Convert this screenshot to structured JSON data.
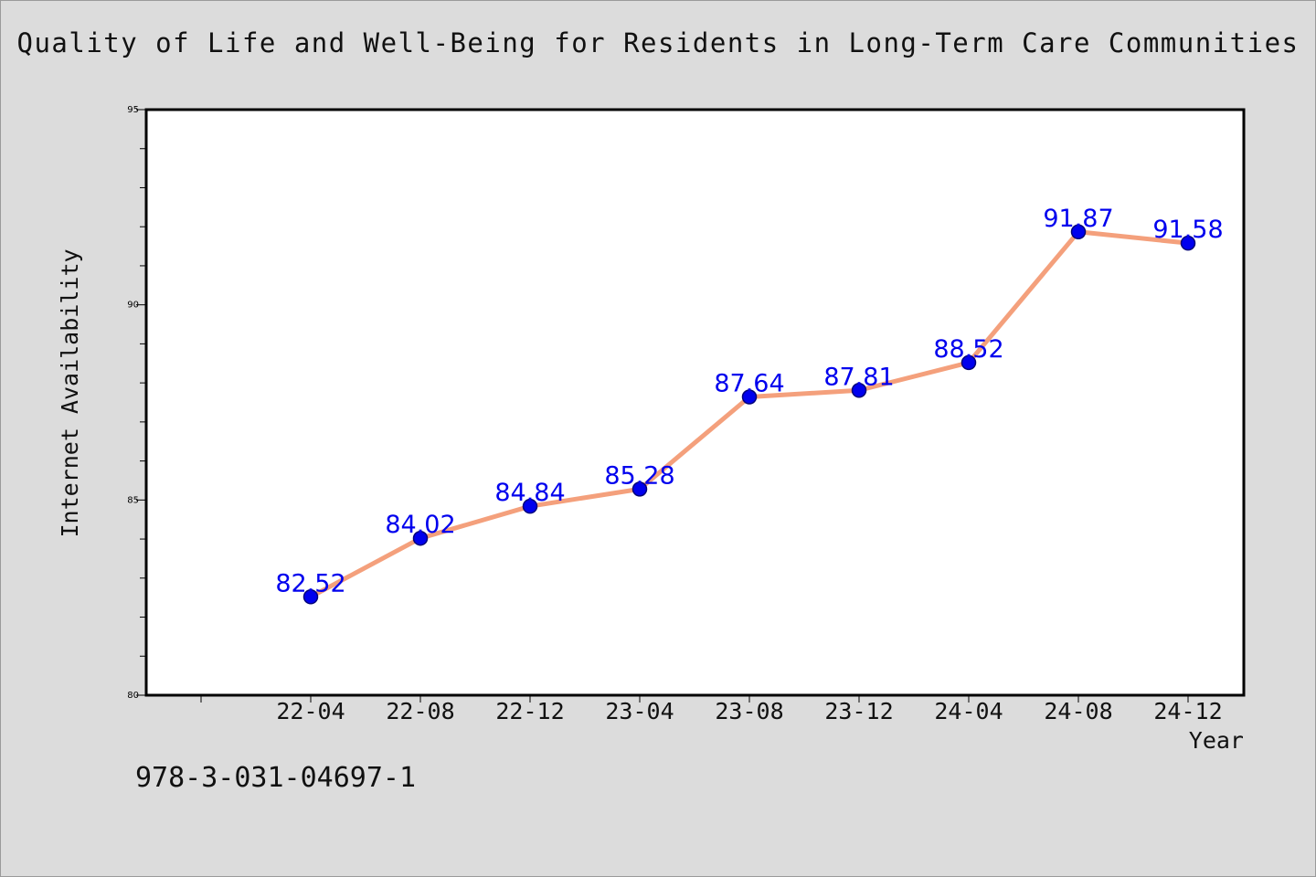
{
  "footer": {
    "code": "978-3-031-04697-1"
  },
  "chart_data": {
    "type": "line",
    "title": "Quality of Life and Well-Being for Residents in Long-Term Care Communities",
    "xlabel": "Year",
    "ylabel": "Internet Availability",
    "categories": [
      "22-04",
      "22-08",
      "22-12",
      "23-04",
      "23-08",
      "23-12",
      "24-04",
      "24-08",
      "24-12"
    ],
    "values": [
      82.52,
      84.02,
      84.84,
      85.28,
      87.64,
      87.81,
      88.52,
      91.87,
      91.58
    ],
    "data_labels": [
      "82.52",
      "84.02",
      "84.84",
      "85.28",
      "87.64",
      "87.81",
      "88.52",
      "91.87",
      "91.58"
    ],
    "ylim": [
      80,
      95
    ],
    "yticks": [
      "80",
      "85",
      "90",
      "95"
    ],
    "grid": false,
    "legend": "none",
    "colors": {
      "line": "#f4a07c",
      "marker": "#0000ee",
      "label": "#0000ee",
      "plot_background": "#ffffff",
      "page_background": "#dcdcdc"
    }
  }
}
